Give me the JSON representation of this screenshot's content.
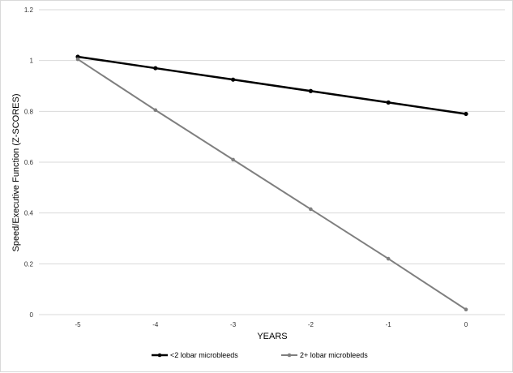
{
  "chart_data": {
    "type": "line",
    "title": "",
    "xlabel": "YEARS",
    "ylabel": "Speed/Executive Function (Z-SCORES)",
    "x": [
      -5,
      -4,
      -3,
      -2,
      -1,
      0
    ],
    "x_tick_labels": [
      "-5",
      "-4",
      "-3",
      "-2",
      "-1",
      "0"
    ],
    "ylim": [
      0,
      1.2
    ],
    "y_ticks": [
      0,
      0.2,
      0.4,
      0.6,
      0.8,
      1,
      1.2
    ],
    "y_tick_labels": [
      "0",
      "0.2",
      "0.4",
      "0.6",
      "0.8",
      "1",
      "1.2"
    ],
    "grid": true,
    "legend_position": "bottom",
    "series": [
      {
        "name": "<2 lobar microbleeds",
        "color": "#000000",
        "values": [
          1.015,
          0.97,
          0.925,
          0.88,
          0.835,
          0.79
        ]
      },
      {
        "name": "2+ lobar microbleeds",
        "color": "#7f7f7f",
        "values": [
          1.005,
          0.805,
          0.61,
          0.415,
          0.22,
          0.02
        ]
      }
    ]
  }
}
